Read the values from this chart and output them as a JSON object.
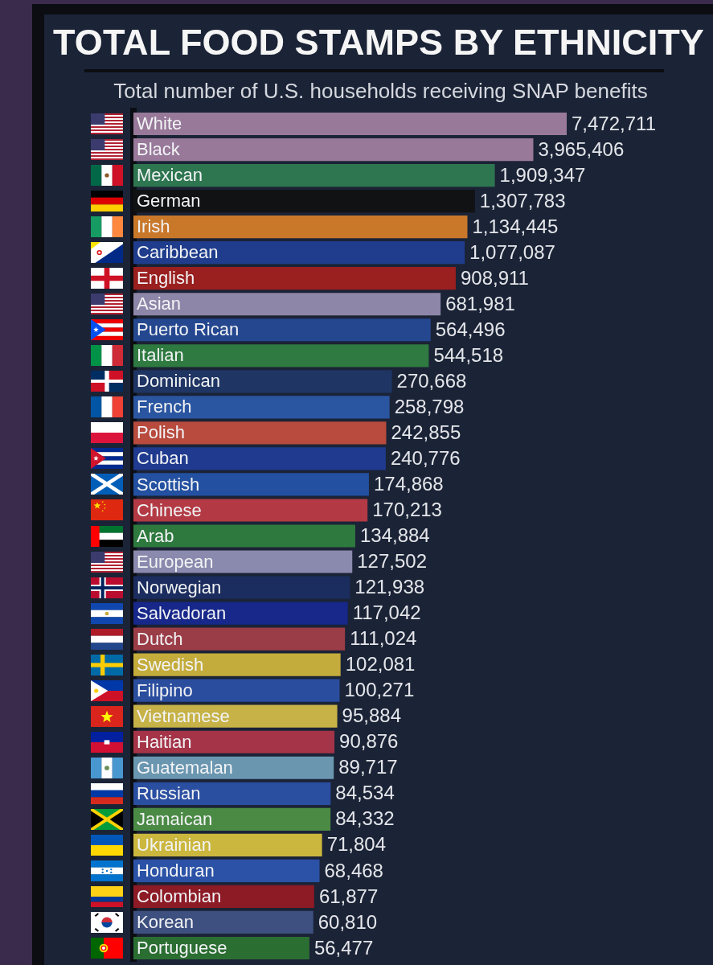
{
  "chart_data": {
    "type": "bar",
    "orientation": "horizontal",
    "title": "TOTAL FOOD STAMPS BY ETHNICITY",
    "subtitle": "Total number of U.S. households receiving SNAP benefits",
    "categories": [
      "White",
      "Black",
      "Mexican",
      "German",
      "Irish",
      "Caribbean",
      "English",
      "Asian",
      "Puerto Rican",
      "Italian",
      "Dominican",
      "French",
      "Polish",
      "Cuban",
      "Scottish",
      "Chinese",
      "Arab",
      "European",
      "Norwegian",
      "Salvadoran",
      "Dutch",
      "Swedish",
      "Filipino",
      "Vietnamese",
      "Haitian",
      "Guatemalan",
      "Russian",
      "Jamaican",
      "Ukrainian",
      "Honduran",
      "Colombian",
      "Korean",
      "Portuguese"
    ],
    "values": [
      7472711,
      3965406,
      1909347,
      1307783,
      1134445,
      1077087,
      908911,
      681981,
      564496,
      544518,
      270668,
      258798,
      242855,
      240776,
      174868,
      170213,
      134884,
      127502,
      121938,
      117042,
      111024,
      102081,
      100271,
      95884,
      90876,
      89717,
      84534,
      84332,
      71804,
      68468,
      61877,
      60810,
      56477
    ],
    "value_labels": [
      "7,472,711",
      "3,965,406",
      "1,909,347",
      "1,307,783",
      "1,134,445",
      "1,077,087",
      "908,911",
      "681,981",
      "564,496",
      "544,518",
      "270,668",
      "258,798",
      "242,855",
      "240,776",
      "174,868",
      "170,213",
      "134,884",
      "127,502",
      "121,938",
      "117,042",
      "111,024",
      "102,081",
      "100,271",
      "95,884",
      "90,876",
      "89,717",
      "84,534",
      "84,332",
      "71,804",
      "68,468",
      "61,877",
      "60,810",
      "56,477"
    ],
    "colors": [
      "#98799a",
      "#98799a",
      "#2e7650",
      "#111214",
      "#c9782a",
      "#1f3d8c",
      "#9a1f1f",
      "#8e86a8",
      "#24478f",
      "#2e7a40",
      "#1f3563",
      "#2a55a0",
      "#b84a3e",
      "#1f3a8e",
      "#2350a0",
      "#b33a44",
      "#2e7a3e",
      "#8a8aae",
      "#1b2d5e",
      "#17288a",
      "#9a3d47",
      "#c4ac3c",
      "#2a4d9e",
      "#c6b246",
      "#a53448",
      "#6a96b0",
      "#2a4ea0",
      "#4a8a45",
      "#cbb73e",
      "#2b52a6",
      "#8c1b26",
      "#3d507f",
      "#2b6e32"
    ],
    "log": "x",
    "xlim": [
      2000,
      7472711
    ],
    "tick_labels": "y"
  }
}
